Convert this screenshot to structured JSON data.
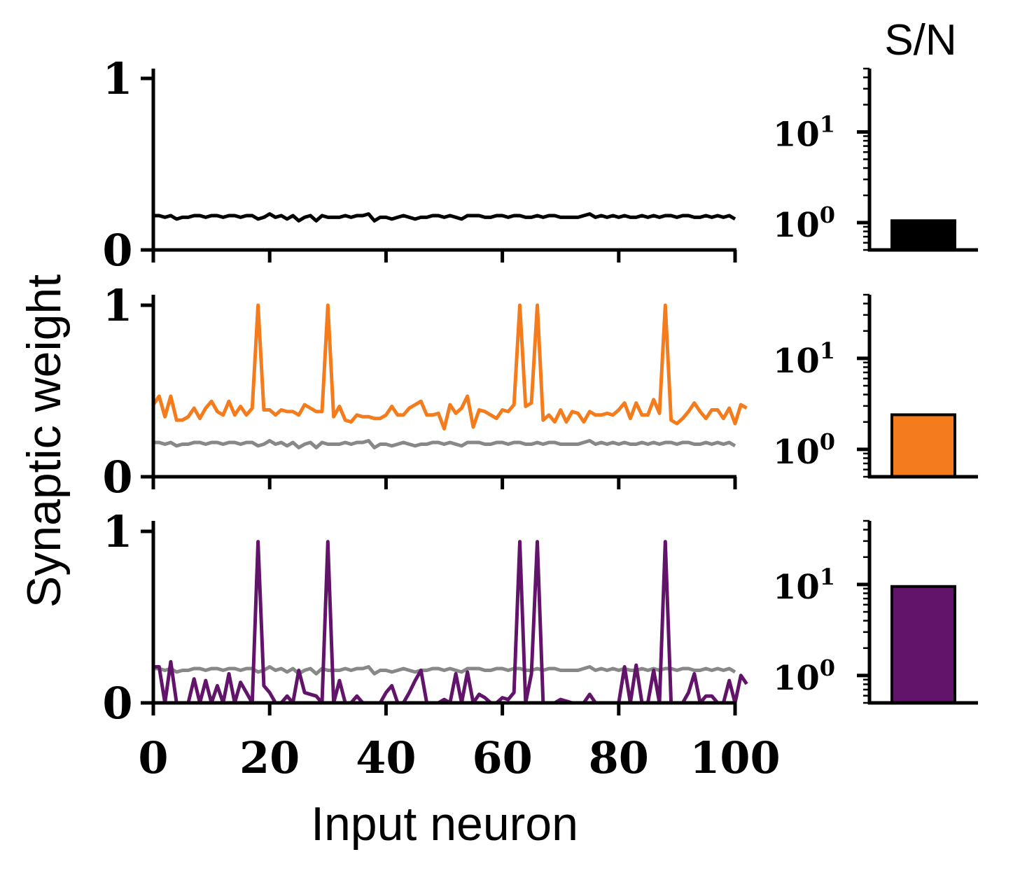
{
  "labels": {
    "ylabel": "Synaptic weight",
    "xlabel": "Input neuron",
    "sn_title": "S/N"
  },
  "colors": {
    "black": "#000000",
    "orange": "#f47c1d",
    "purple": "#62146a",
    "gray": "#888888"
  },
  "chart_data": [
    {
      "type": "line",
      "panel": "top",
      "xlim": [
        0,
        100
      ],
      "ylim": [
        0,
        1
      ],
      "yticks": [
        "0",
        "1"
      ],
      "xticks": [
        "0",
        "20",
        "40",
        "60",
        "80",
        "100"
      ],
      "series": [
        {
          "color": "#000000",
          "values": [
            0.2,
            0.2,
            0.19,
            0.2,
            0.18,
            0.19,
            0.19,
            0.2,
            0.2,
            0.19,
            0.2,
            0.2,
            0.19,
            0.2,
            0.2,
            0.19,
            0.2,
            0.2,
            0.18,
            0.19,
            0.21,
            0.19,
            0.2,
            0.18,
            0.2,
            0.17,
            0.19,
            0.2,
            0.17,
            0.2,
            0.19,
            0.19,
            0.19,
            0.2,
            0.19,
            0.2,
            0.2,
            0.21,
            0.17,
            0.19,
            0.19,
            0.18,
            0.19,
            0.2,
            0.19,
            0.18,
            0.19,
            0.19,
            0.2,
            0.2,
            0.19,
            0.2,
            0.19,
            0.18,
            0.2,
            0.2,
            0.2,
            0.19,
            0.19,
            0.2,
            0.2,
            0.19,
            0.2,
            0.2,
            0.19,
            0.19,
            0.2,
            0.19,
            0.2,
            0.2,
            0.19,
            0.19,
            0.19,
            0.19,
            0.2,
            0.21,
            0.19,
            0.2,
            0.19,
            0.2,
            0.19,
            0.2,
            0.19,
            0.19,
            0.2,
            0.19,
            0.2,
            0.19,
            0.2,
            0.2,
            0.19,
            0.2,
            0.2,
            0.19,
            0.19,
            0.2,
            0.19,
            0.2,
            0.19,
            0.2,
            0.18
          ]
        }
      ]
    },
    {
      "type": "line",
      "panel": "middle",
      "xlim": [
        0,
        100
      ],
      "ylim": [
        0,
        1
      ],
      "yticks": [
        "0",
        "1"
      ],
      "xticks": [
        "0",
        "20",
        "40",
        "60",
        "80",
        "100"
      ],
      "series": [
        {
          "color": "#f47c1d",
          "values": [
            0.42,
            0.47,
            0.35,
            0.47,
            0.33,
            0.33,
            0.35,
            0.4,
            0.34,
            0.4,
            0.44,
            0.38,
            0.36,
            0.44,
            0.36,
            0.41,
            0.36,
            0.4,
            1.0,
            0.39,
            0.39,
            0.36,
            0.39,
            0.38,
            0.38,
            0.36,
            0.42,
            0.4,
            0.38,
            0.38,
            1.0,
            0.35,
            0.41,
            0.33,
            0.32,
            0.36,
            0.35,
            0.35,
            0.34,
            0.34,
            0.36,
            0.41,
            0.36,
            0.36,
            0.4,
            0.42,
            0.44,
            0.36,
            0.36,
            0.37,
            0.28,
            0.42,
            0.37,
            0.4,
            0.47,
            0.29,
            0.39,
            0.38,
            0.36,
            0.34,
            0.39,
            0.38,
            0.42,
            1.0,
            0.41,
            0.43,
            1.0,
            0.33,
            0.36,
            0.32,
            0.39,
            0.32,
            0.38,
            0.37,
            0.32,
            0.38,
            0.36,
            0.36,
            0.37,
            0.36,
            0.39,
            0.43,
            0.34,
            0.43,
            0.36,
            0.36,
            0.45,
            0.37,
            1.0,
            0.33,
            0.31,
            0.34,
            0.38,
            0.43,
            0.38,
            0.34,
            0.39,
            0.39,
            0.34,
            0.4,
            0.31,
            0.42,
            0.4
          ]
        },
        {
          "color": "#888888",
          "values": [
            0.2,
            0.2,
            0.19,
            0.2,
            0.18,
            0.19,
            0.19,
            0.2,
            0.2,
            0.19,
            0.2,
            0.2,
            0.19,
            0.2,
            0.2,
            0.19,
            0.2,
            0.2,
            0.18,
            0.19,
            0.21,
            0.19,
            0.2,
            0.18,
            0.2,
            0.17,
            0.19,
            0.2,
            0.17,
            0.2,
            0.19,
            0.19,
            0.19,
            0.2,
            0.19,
            0.2,
            0.2,
            0.21,
            0.17,
            0.19,
            0.19,
            0.18,
            0.19,
            0.2,
            0.19,
            0.18,
            0.19,
            0.19,
            0.2,
            0.2,
            0.19,
            0.2,
            0.19,
            0.18,
            0.2,
            0.2,
            0.2,
            0.19,
            0.19,
            0.2,
            0.2,
            0.19,
            0.2,
            0.2,
            0.19,
            0.19,
            0.2,
            0.19,
            0.2,
            0.2,
            0.19,
            0.19,
            0.19,
            0.19,
            0.2,
            0.21,
            0.19,
            0.2,
            0.19,
            0.2,
            0.19,
            0.2,
            0.19,
            0.19,
            0.2,
            0.19,
            0.2,
            0.19,
            0.2,
            0.2,
            0.19,
            0.2,
            0.2,
            0.19,
            0.19,
            0.2,
            0.19,
            0.2,
            0.19,
            0.2,
            0.18
          ]
        }
      ]
    },
    {
      "type": "line",
      "panel": "bottom",
      "xlim": [
        0,
        100
      ],
      "ylim": [
        0,
        1
      ],
      "yticks": [
        "0",
        "1"
      ],
      "xticks": [
        "0",
        "20",
        "40",
        "60",
        "80",
        "100"
      ],
      "series": [
        {
          "color": "#62146a",
          "values": [
            0.21,
            0.21,
            0.0,
            0.24,
            0.0,
            0.0,
            0.0,
            0.14,
            0.0,
            0.13,
            0.0,
            0.1,
            0.0,
            0.17,
            0.0,
            0.12,
            0.06,
            0.0,
            0.94,
            0.1,
            0.06,
            0.0,
            0.0,
            0.04,
            0.0,
            0.19,
            0.06,
            0.05,
            0.04,
            0.0,
            0.94,
            0.0,
            0.13,
            0.0,
            0.0,
            0.04,
            0.0,
            0.0,
            0.0,
            0.0,
            0.06,
            0.1,
            0.0,
            0.0,
            0.06,
            0.13,
            0.19,
            0.0,
            0.0,
            0.0,
            0.02,
            0.0,
            0.17,
            0.0,
            0.18,
            0.0,
            0.05,
            0.03,
            0.0,
            0.0,
            0.03,
            0.02,
            0.06,
            0.94,
            0.0,
            0.17,
            0.94,
            0.0,
            0.0,
            0.0,
            0.02,
            0.01,
            0.0,
            0.0,
            0.0,
            0.05,
            0.0,
            0.0,
            0.0,
            0.0,
            0.0,
            0.21,
            0.0,
            0.22,
            0.0,
            0.0,
            0.19,
            0.0,
            0.94,
            0.0,
            0.0,
            0.0,
            0.06,
            0.17,
            0.0,
            0.04,
            0.04,
            0.0,
            0.0,
            0.13,
            0.0,
            0.16,
            0.11
          ]
        },
        {
          "color": "#888888",
          "values": [
            0.2,
            0.2,
            0.19,
            0.2,
            0.18,
            0.19,
            0.19,
            0.2,
            0.2,
            0.19,
            0.2,
            0.2,
            0.19,
            0.2,
            0.2,
            0.19,
            0.2,
            0.2,
            0.18,
            0.19,
            0.21,
            0.19,
            0.2,
            0.18,
            0.2,
            0.17,
            0.19,
            0.2,
            0.17,
            0.2,
            0.19,
            0.19,
            0.19,
            0.2,
            0.19,
            0.2,
            0.2,
            0.21,
            0.17,
            0.19,
            0.19,
            0.18,
            0.19,
            0.2,
            0.19,
            0.18,
            0.19,
            0.19,
            0.2,
            0.2,
            0.19,
            0.2,
            0.19,
            0.18,
            0.2,
            0.2,
            0.2,
            0.19,
            0.19,
            0.2,
            0.2,
            0.19,
            0.2,
            0.2,
            0.19,
            0.19,
            0.2,
            0.19,
            0.2,
            0.2,
            0.19,
            0.19,
            0.19,
            0.19,
            0.2,
            0.21,
            0.19,
            0.2,
            0.19,
            0.2,
            0.19,
            0.2,
            0.19,
            0.19,
            0.2,
            0.19,
            0.2,
            0.19,
            0.2,
            0.2,
            0.19,
            0.2,
            0.2,
            0.19,
            0.19,
            0.2,
            0.19,
            0.2,
            0.19,
            0.2,
            0.18
          ]
        }
      ]
    },
    {
      "type": "bar",
      "panel": "top-sn",
      "scale": "log",
      "ylim": [
        0.5,
        50
      ],
      "yticks": [
        {
          "base": "10",
          "exp": "0"
        },
        {
          "base": "10",
          "exp": "1"
        }
      ],
      "values": [
        1.05
      ],
      "color": "#000000"
    },
    {
      "type": "bar",
      "panel": "middle-sn",
      "scale": "log",
      "ylim": [
        0.5,
        50
      ],
      "yticks": [
        {
          "base": "10",
          "exp": "0"
        },
        {
          "base": "10",
          "exp": "1"
        }
      ],
      "values": [
        2.4
      ],
      "color": "#f47c1d"
    },
    {
      "type": "bar",
      "panel": "bottom-sn",
      "scale": "log",
      "ylim": [
        0.5,
        50
      ],
      "yticks": [
        {
          "base": "10",
          "exp": "0"
        },
        {
          "base": "10",
          "exp": "1"
        }
      ],
      "values": [
        9.5
      ],
      "color": "#62146a"
    }
  ]
}
